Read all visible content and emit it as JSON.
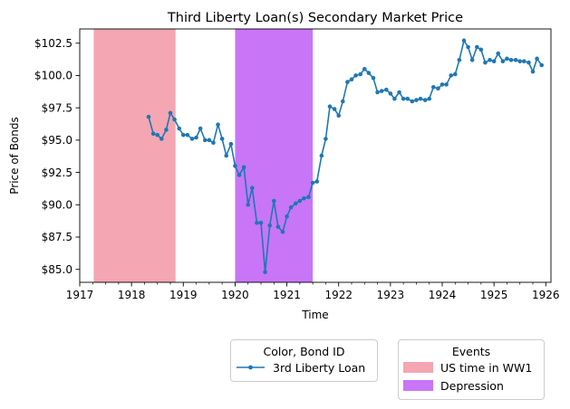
{
  "chart_data": {
    "type": "line",
    "title": "Third Liberty Loan(s) Secondary Market Price",
    "xlabel": "Time",
    "ylabel": "Price of Bonds",
    "xlim": [
      1917.0,
      1926.1
    ],
    "ylim": [
      84.0,
      103.6
    ],
    "x_ticks": [
      1917,
      1918,
      1919,
      1920,
      1921,
      1922,
      1923,
      1924,
      1925,
      1926
    ],
    "x_tick_labels": [
      "1917",
      "1918",
      "1919",
      "1920",
      "1921",
      "1922",
      "1923",
      "1924",
      "1925",
      "1926"
    ],
    "y_ticks": [
      85.0,
      87.5,
      90.0,
      92.5,
      95.0,
      97.5,
      100.0,
      102.5
    ],
    "y_tick_labels": [
      "$85.0",
      "$87.5",
      "$90.0",
      "$92.5",
      "$95.0",
      "$97.5",
      "$100.0",
      "$102.5"
    ],
    "grid": false,
    "series": [
      {
        "name": "3rd Liberty Loan",
        "color": "#1f77b4",
        "x": [
          1918.33,
          1918.42,
          1918.5,
          1918.58,
          1918.67,
          1918.75,
          1918.83,
          1918.92,
          1919.0,
          1919.08,
          1919.17,
          1919.25,
          1919.33,
          1919.42,
          1919.5,
          1919.58,
          1919.67,
          1919.75,
          1919.83,
          1919.92,
          1920.0,
          1920.08,
          1920.17,
          1920.25,
          1920.33,
          1920.42,
          1920.5,
          1920.58,
          1920.67,
          1920.75,
          1920.83,
          1920.92,
          1921.0,
          1921.08,
          1921.17,
          1921.25,
          1921.33,
          1921.42,
          1921.5,
          1921.58,
          1921.67,
          1921.75,
          1921.83,
          1921.92,
          1922.0,
          1922.08,
          1922.17,
          1922.25,
          1922.33,
          1922.42,
          1922.5,
          1922.58,
          1922.67,
          1922.75,
          1922.83,
          1922.92,
          1923.0,
          1923.08,
          1923.17,
          1923.25,
          1923.33,
          1923.42,
          1923.5,
          1923.58,
          1923.67,
          1923.75,
          1923.83,
          1923.92,
          1924.0,
          1924.08,
          1924.17,
          1924.25,
          1924.33,
          1924.42,
          1924.5,
          1924.58,
          1924.67,
          1924.75,
          1924.83,
          1924.92,
          1925.0,
          1925.08,
          1925.17,
          1925.25,
          1925.33,
          1925.42,
          1925.5,
          1925.58,
          1925.67,
          1925.75,
          1925.83,
          1925.92
        ],
        "y": [
          96.8,
          95.5,
          95.4,
          95.1,
          95.8,
          97.1,
          96.6,
          95.9,
          95.4,
          95.4,
          95.1,
          95.2,
          95.9,
          95.0,
          95.0,
          94.8,
          96.2,
          95.1,
          93.8,
          94.7,
          93.0,
          92.3,
          92.9,
          90.0,
          91.3,
          88.6,
          88.6,
          84.8,
          88.4,
          90.3,
          88.3,
          87.9,
          89.1,
          89.8,
          90.1,
          90.3,
          90.5,
          90.6,
          91.7,
          91.8,
          93.8,
          95.1,
          97.6,
          97.4,
          96.9,
          98.0,
          99.5,
          99.7,
          100.0,
          100.1,
          100.5,
          100.2,
          99.8,
          98.7,
          98.8,
          98.9,
          98.6,
          98.2,
          98.7,
          98.2,
          98.2,
          98.0,
          98.1,
          98.2,
          98.1,
          98.2,
          99.1,
          99.0,
          99.3,
          99.3,
          100.0,
          100.1,
          101.2,
          102.7,
          102.2,
          101.2,
          102.2,
          102.0,
          101.0,
          101.2,
          101.1,
          101.7,
          101.1,
          101.3,
          101.2,
          101.2,
          101.1,
          101.1,
          101.0,
          100.3,
          101.3,
          100.8
        ]
      }
    ],
    "events": [
      {
        "name": "US time in WW1",
        "start": 1917.27,
        "end": 1918.85,
        "color": "#f4a6b2"
      },
      {
        "name": "Depression",
        "start": 1920.0,
        "end": 1921.5,
        "color": "#c875f7"
      }
    ],
    "legend_series_title": "Color, Bond ID",
    "legend_events_title": "Events",
    "legend_placement": "below"
  }
}
